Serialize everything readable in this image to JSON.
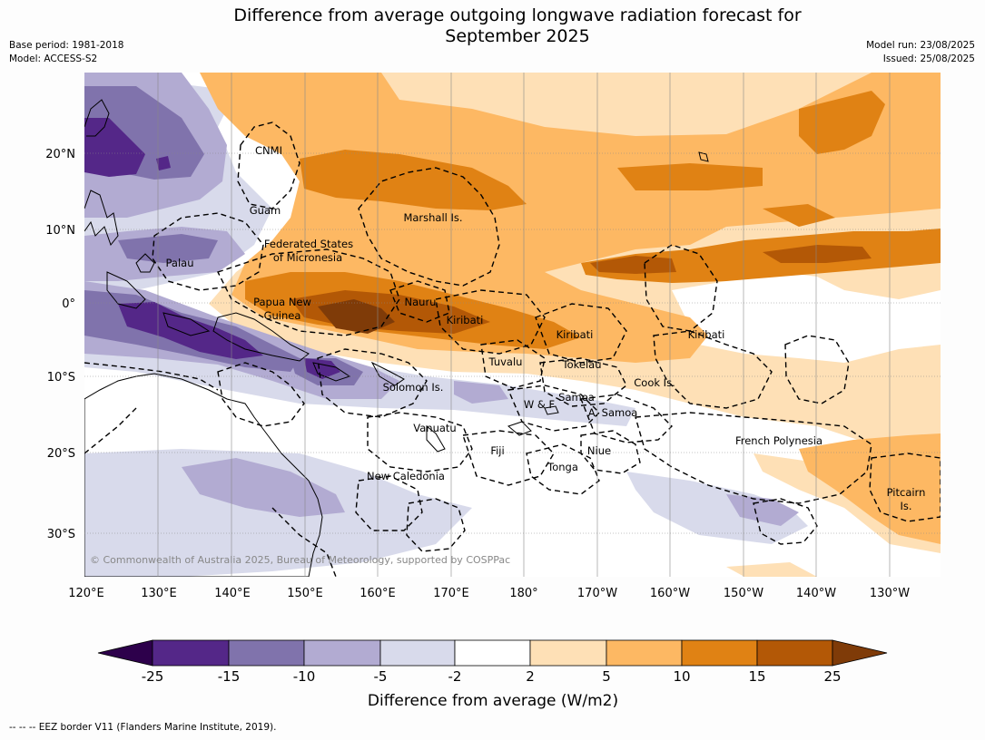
{
  "title_line1": "Difference from average outgoing longwave radiation forecast for",
  "title_line2": "September 2025",
  "meta_left": [
    "Base period: 1981-2018",
    "Model: ACCESS-S2"
  ],
  "meta_right": [
    "Model run: 23/08/2025",
    "Issued: 25/08/2025"
  ],
  "lat_labels": [
    "20°N",
    "10°N",
    "0°",
    "10°S",
    "20°S",
    "30°S"
  ],
  "lon_labels": [
    "120°E",
    "130°E",
    "140°E",
    "150°E",
    "160°E",
    "170°E",
    "180°",
    "170°W",
    "160°W",
    "150°W",
    "140°W",
    "130°W"
  ],
  "regions": [
    "CNMI",
    "Guam",
    "Marshall Is.",
    "Federated States",
    "of Micronesia",
    "Palau",
    "Papua New",
    "Guinea",
    "Nauru",
    "Kiribati",
    "Kiribati",
    "Kiribati",
    "Tuvalu",
    "Tokelau",
    "Solomon Is.",
    "Samoa",
    "W & F",
    "A. Samoa",
    "Cook Is.",
    "Vanuatu",
    "Fiji",
    "Niue",
    "Tonga",
    "French Polynesia",
    "New Caledonia",
    "Pitcairn",
    "Is."
  ],
  "copyright": "© Commonwealth of Australia 2025, Bureau of Meteorology, supported by COSPPac",
  "colorbar": {
    "ticks": [
      "-25",
      "-15",
      "-10",
      "-5",
      "-2",
      "2",
      "5",
      "10",
      "15",
      "25"
    ],
    "colors": [
      "#2d004b",
      "#542788",
      "#8073ac",
      "#b2abd2",
      "#d8daeb",
      "#ffffff",
      "#fee0b6",
      "#fdb863",
      "#e08214",
      "#b35806",
      "#7f3b08"
    ],
    "title": "Difference from average (W/m2)"
  },
  "footer_note": "--  --  -- EEZ border V11 (Flanders Marine Institute, 2019)."
}
